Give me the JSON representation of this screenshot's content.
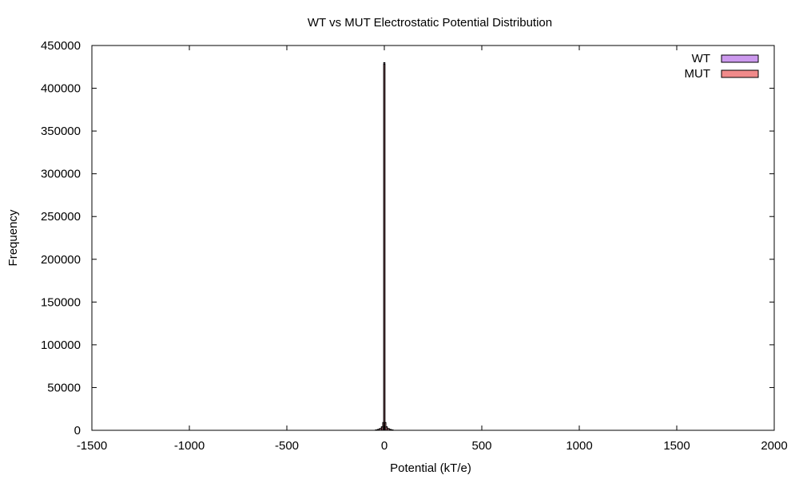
{
  "chart_data": {
    "type": "bar",
    "title": "WT vs MUT Electrostatic Potential Distribution",
    "xlabel": "Potential (kT/e)",
    "ylabel": "Frequency",
    "xlim": [
      -1500,
      2000
    ],
    "ylim": [
      0,
      450000
    ],
    "x_ticks": [
      "-1500",
      "-1000",
      "-500",
      "0",
      "500",
      "1000",
      "1500",
      "2000"
    ],
    "y_ticks": [
      "0",
      "50000",
      "100000",
      "150000",
      "200000",
      "250000",
      "300000",
      "350000",
      "400000",
      "450000"
    ],
    "legend_position": "top-right",
    "grid": false,
    "series": [
      {
        "name": "WT",
        "color": "#cc99ee",
        "x": [
          -40,
          -30,
          -20,
          -10,
          -5,
          0,
          5,
          10,
          20,
          30,
          40
        ],
        "values": [
          500,
          1000,
          2000,
          4000,
          9000,
          430000,
          9000,
          4000,
          2000,
          1000,
          500
        ]
      },
      {
        "name": "MUT",
        "color": "#f08a8a",
        "x": [
          -40,
          -30,
          -20,
          -10,
          -5,
          0,
          5,
          10,
          20,
          30,
          40
        ],
        "values": [
          500,
          1000,
          2000,
          4000,
          9000,
          428000,
          9000,
          4000,
          2000,
          1000,
          500
        ]
      }
    ]
  }
}
